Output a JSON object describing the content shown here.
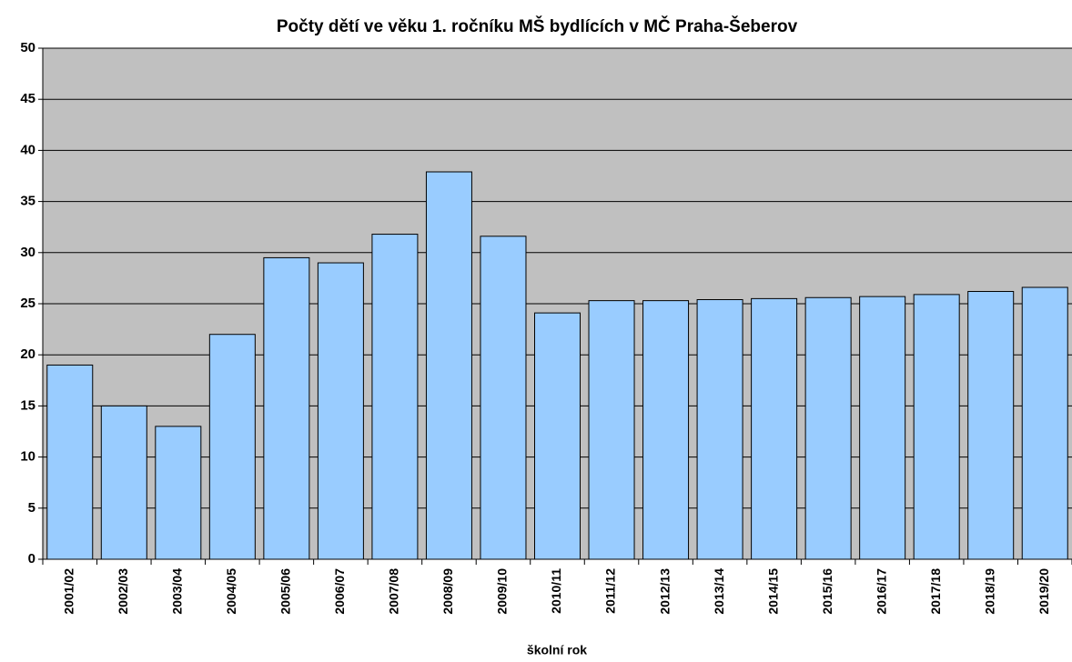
{
  "chart_data": {
    "type": "bar",
    "title": "Počty dětí ve věku 1. ročníku MŠ bydlících v MČ Praha-Šeberov",
    "x_label": "školní rok",
    "categories": [
      "2001/02",
      "2002/03",
      "2003/04",
      "2004/05",
      "2005/06",
      "2006/07",
      "2007/08",
      "2008/09",
      "2009/10",
      "2010/11",
      "2011/12",
      "2012/13",
      "2013/14",
      "2014/15",
      "2015/16",
      "2016/17",
      "2017/18",
      "2018/19",
      "2019/20"
    ],
    "values": [
      19,
      15,
      13,
      22,
      29.5,
      29,
      31.8,
      37.9,
      31.6,
      24.1,
      25.3,
      25.3,
      25.4,
      25.5,
      25.6,
      25.7,
      25.9,
      26.2,
      26.6
    ],
    "color": "#99ccff",
    "ylim": [
      0,
      50
    ],
    "yticks": [
      0,
      5,
      10,
      15,
      20,
      25,
      30,
      35,
      40,
      45,
      50
    ],
    "grid": true
  }
}
